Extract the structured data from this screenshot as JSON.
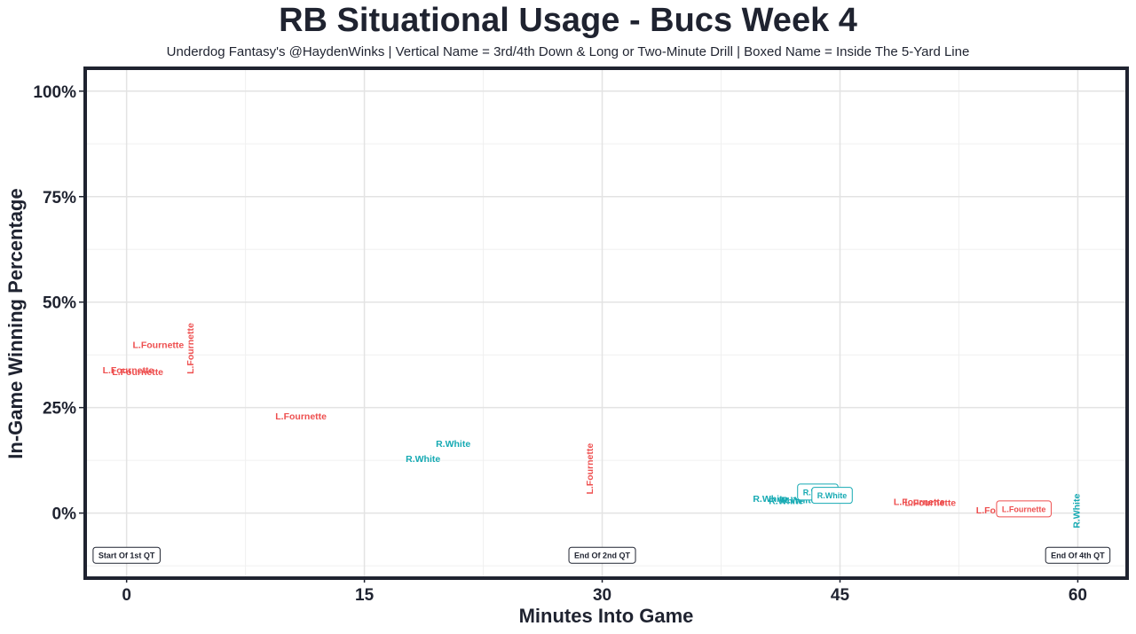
{
  "chart_data": {
    "type": "scatter",
    "title": "RB Situational Usage - Bucs Week 4",
    "subtitle": "Underdog Fantasy's @HaydenWinks | Vertical Name = 3rd/4th Down & Long or Two-Minute Drill | Boxed Name = Inside The 5-Yard Line",
    "xlabel": "Minutes Into Game",
    "ylabel": "In-Game Winning Percentage",
    "xlim": [
      -2.5,
      63
    ],
    "ylim": [
      -15,
      105
    ],
    "x_ticks": [
      {
        "value": 0,
        "label": "0"
      },
      {
        "value": 15,
        "label": "15"
      },
      {
        "value": 30,
        "label": "30"
      },
      {
        "value": 45,
        "label": "45"
      },
      {
        "value": 60,
        "label": "60"
      }
    ],
    "y_ticks": [
      {
        "value": 0,
        "label": "0%"
      },
      {
        "value": 25,
        "label": "25%"
      },
      {
        "value": 50,
        "label": "50%"
      },
      {
        "value": 75,
        "label": "75%"
      },
      {
        "value": 100,
        "label": "100%"
      }
    ],
    "grid": true,
    "colors": {
      "L.Fournette": "#ee4f4f",
      "R.White": "#16aab3"
    },
    "points": [
      {
        "player": "L.Fournette",
        "x": 2.0,
        "y": 40.0,
        "style": "normal"
      },
      {
        "player": "L.Fournette",
        "x": 4.0,
        "y": 39.0,
        "style": "vertical"
      },
      {
        "player": "L.Fournette",
        "x": 0.1,
        "y": 34.0,
        "style": "normal"
      },
      {
        "player": "L.Fournette",
        "x": 0.7,
        "y": 33.5,
        "style": "normal"
      },
      {
        "player": "L.Fournette",
        "x": 11.0,
        "y": 23.0,
        "style": "normal"
      },
      {
        "player": "R.White",
        "x": 20.6,
        "y": 16.5,
        "style": "normal"
      },
      {
        "player": "R.White",
        "x": 18.7,
        "y": 13.0,
        "style": "normal"
      },
      {
        "player": "L.Fournette",
        "x": 29.2,
        "y": 10.5,
        "style": "vertical"
      },
      {
        "player": "R.White",
        "x": 40.6,
        "y": 3.5,
        "style": "normal"
      },
      {
        "player": "R.White",
        "x": 42.4,
        "y": 3.2,
        "style": "normal"
      },
      {
        "player": "R.White",
        "x": 41.6,
        "y": 3.0,
        "style": "normal"
      },
      {
        "player": "R.White",
        "x": 43.6,
        "y": 5.0,
        "style": "boxed"
      },
      {
        "player": "R.White",
        "x": 44.5,
        "y": 4.2,
        "style": "boxed"
      },
      {
        "player": "L.Fournette",
        "x": 50.0,
        "y": 2.8,
        "style": "normal"
      },
      {
        "player": "L.Fournette",
        "x": 50.7,
        "y": 2.5,
        "style": "normal"
      },
      {
        "player": "L.Fournette",
        "x": 55.2,
        "y": 0.8,
        "style": "normal"
      },
      {
        "player": "L.Fournette",
        "x": 56.6,
        "y": 1.0,
        "style": "boxed"
      },
      {
        "player": "R.White",
        "x": 59.9,
        "y": 0.5,
        "style": "vertical"
      }
    ],
    "annotations": [
      {
        "label": "Start Of 1st QT",
        "x": 0,
        "y": -10
      },
      {
        "label": "End Of 2nd QT",
        "x": 30,
        "y": -10
      },
      {
        "label": "End Of 4th QT",
        "x": 60,
        "y": -10
      }
    ]
  }
}
